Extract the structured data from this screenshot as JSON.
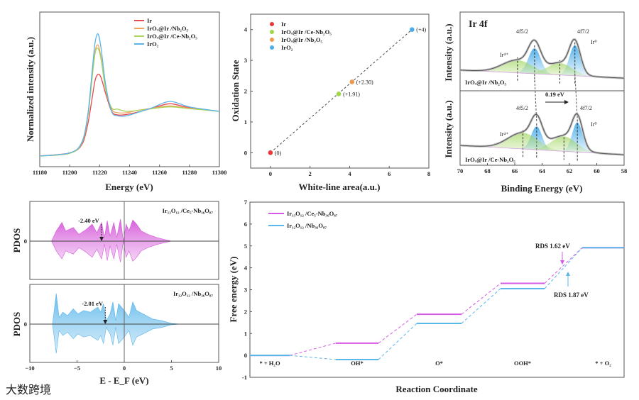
{
  "chart_data": [
    {
      "id": "xanes",
      "type": "line",
      "xlabel": "Energy (eV)",
      "ylabel": "Normalized intensity (a.u.)",
      "xlim": [
        11180,
        11300
      ],
      "xticks": [
        11180,
        11200,
        11220,
        11240,
        11260,
        11280,
        11300
      ],
      "legend_position": "top-right",
      "x": [
        11180,
        11200,
        11208,
        11212,
        11215,
        11217,
        11219,
        11221,
        11224,
        11228,
        11232,
        11238,
        11245,
        11255,
        11267,
        11280,
        11300
      ],
      "series": [
        {
          "name": "Ir",
          "color": "#e8484f",
          "values": [
            0,
            0.07,
            0.25,
            0.7,
            1.3,
            1.7,
            1.83,
            1.75,
            1.4,
            1.0,
            0.92,
            0.93,
            0.98,
            1.07,
            1.17,
            1.08,
            1.0
          ]
        },
        {
          "name": "IrOₓ@Ir /Nb₂O₅",
          "color": "#f2a25a",
          "values": [
            0,
            0.07,
            0.3,
            0.9,
            1.8,
            2.35,
            2.48,
            2.2,
            1.5,
            1.05,
            0.97,
            0.97,
            1.02,
            1.07,
            1.12,
            1.07,
            1.0
          ]
        },
        {
          "name": "IrOₓ@Ir /Ce-Nb₂O₅",
          "color": "#a8d45a",
          "values": [
            0,
            0.06,
            0.28,
            0.85,
            1.75,
            2.3,
            2.41,
            2.15,
            1.5,
            1.08,
            1.05,
            1.0,
            1.02,
            1.06,
            1.1,
            1.06,
            1.0
          ]
        },
        {
          "name": "IrO₂",
          "color": "#5ab4ea",
          "values": [
            0,
            0.07,
            0.3,
            0.9,
            1.9,
            2.55,
            2.73,
            2.4,
            1.6,
            1.0,
            0.9,
            0.9,
            0.97,
            1.08,
            1.22,
            1.1,
            1.0
          ]
        }
      ]
    },
    {
      "id": "oxidation",
      "type": "scatter",
      "xlabel": "White-line area(a.u.)",
      "ylabel": "Oxidation State",
      "xlim": [
        -1,
        8
      ],
      "ylim": [
        -0.5,
        4.5
      ],
      "xticks": [
        0,
        2,
        4,
        6,
        8
      ],
      "yticks": [
        0,
        1,
        2,
        3,
        4
      ],
      "legend_position": "top-left",
      "points": [
        {
          "name": "Ir",
          "x": 0,
          "y": 0,
          "label": "(0)",
          "color": "#e83a3a"
        },
        {
          "name": "IrOₓ@Ir /Ce-Nb₂O₅",
          "x": 3.45,
          "y": 1.91,
          "label": "(+1.91)",
          "color": "#9fd64a"
        },
        {
          "name": "IrOₓ@Ir /Nb₂O₅",
          "x": 4.12,
          "y": 2.3,
          "label": "(+2.30)",
          "color": "#ee9a50"
        },
        {
          "name": "IrO₂",
          "x": 7.15,
          "y": 4,
          "label": "(+4)",
          "color": "#4aaeea"
        }
      ],
      "fit_line": {
        "x": [
          0,
          7.15
        ],
        "y": [
          0,
          4
        ]
      }
    },
    {
      "id": "xps",
      "type": "area",
      "title": "Ir 4f",
      "xlabel": "Binding Energy (eV)",
      "ylabel": "Intensity (a.u.)",
      "xlim": [
        70,
        58
      ],
      "xticks": [
        70,
        68,
        66,
        64,
        62,
        60,
        58
      ],
      "shift_label": "0.19 eV",
      "peak_labels": {
        "f52": "4f5/2",
        "f72": "4f7/2",
        "ir0": "Ir⁰",
        "ir4": "Ir⁴⁺"
      },
      "panels": [
        {
          "sample": "IrOₓ@Ir /Nb₂O₅",
          "background": [
            0.22,
            0.03
          ],
          "components": [
            {
              "species": "Ir0",
              "center": 64.55,
              "height": 0.6,
              "sigma": 0.45
            },
            {
              "species": "Ir0",
              "center": 61.6,
              "height": 0.72,
              "sigma": 0.4
            },
            {
              "species": "Ir4+",
              "center": 65.8,
              "height": 0.3,
              "sigma": 1.1
            },
            {
              "species": "Ir4+",
              "center": 62.7,
              "height": 0.28,
              "sigma": 0.9
            }
          ]
        },
        {
          "sample": "IrOₓ@Ir /Ce-Nb₂O₅",
          "background": [
            0.25,
            0.03
          ],
          "components": [
            {
              "species": "Ir0",
              "center": 64.4,
              "height": 0.55,
              "sigma": 0.4
            },
            {
              "species": "Ir0",
              "center": 61.42,
              "height": 0.7,
              "sigma": 0.38
            },
            {
              "species": "Ir4+",
              "center": 65.4,
              "height": 0.38,
              "sigma": 1.1
            },
            {
              "species": "Ir4+",
              "center": 62.4,
              "height": 0.35,
              "sigma": 0.9
            }
          ]
        }
      ]
    },
    {
      "id": "pdos",
      "type": "area",
      "xlabel": "E - E_F (eV)",
      "ylabel": "PDOS",
      "xlim": [
        -10,
        10
      ],
      "xticks": [
        -10,
        -5,
        0,
        5,
        10
      ],
      "zero_label": "0",
      "panels": [
        {
          "name": "Ir₁₃O₁₂ /Ce₅-Nb₃₆O₈₇",
          "color": "#d45ad8",
          "d_band_center": -2.4,
          "d_band_label": "-2.40 eV",
          "points": [
            [
              -7.7,
              0
            ],
            [
              -7.2,
              0.3
            ],
            [
              -6.6,
              0.55
            ],
            [
              -6.2,
              0.3
            ],
            [
              -5.4,
              0.4
            ],
            [
              -4.8,
              0.2
            ],
            [
              -4,
              0.35
            ],
            [
              -3.4,
              0.5
            ],
            [
              -2.9,
              0.25
            ],
            [
              -2.4,
              0.55
            ],
            [
              -2.1,
              0.1
            ],
            [
              -1.8,
              0.6
            ],
            [
              -1.5,
              0.15
            ],
            [
              -1.1,
              0.55
            ],
            [
              -0.8,
              0.1
            ],
            [
              -0.4,
              0.65
            ],
            [
              -0.1,
              0
            ],
            [
              0.2,
              0.5
            ],
            [
              0.5,
              0.3
            ],
            [
              0.9,
              0.62
            ],
            [
              1.3,
              0.5
            ],
            [
              1.8,
              0.3
            ],
            [
              2.5,
              0.2
            ],
            [
              3.5,
              0.1
            ],
            [
              5,
              0
            ],
            [
              10,
              0
            ]
          ]
        },
        {
          "name": "Ir₁₂O₁₂ /Nb₃₆O₈₇",
          "color": "#5ab4ea",
          "d_band_center": -2.01,
          "d_band_label": "-2.01 eV",
          "points": [
            [
              -7.6,
              0
            ],
            [
              -7.2,
              0.9
            ],
            [
              -6.9,
              0.2
            ],
            [
              -6.5,
              0.35
            ],
            [
              -6,
              0.25
            ],
            [
              -5.4,
              0.45
            ],
            [
              -4.9,
              0.3
            ],
            [
              -4.3,
              0.4
            ],
            [
              -3.6,
              0.35
            ],
            [
              -2.8,
              0.5
            ],
            [
              -2.5,
              0.35
            ],
            [
              -2.2,
              0.6
            ],
            [
              -1.9,
              0.1
            ],
            [
              -1.5,
              0.3
            ],
            [
              -1.2,
              0.65
            ],
            [
              -0.9,
              0.1
            ],
            [
              -0.6,
              0.6
            ],
            [
              -0.3,
              0.5
            ],
            [
              0,
              0.4
            ],
            [
              0.5,
              0.2
            ],
            [
              0.9,
              0.65
            ],
            [
              1.3,
              0.4
            ],
            [
              2,
              0.3
            ],
            [
              3,
              0.15
            ],
            [
              4,
              0.1
            ],
            [
              5,
              0.02
            ],
            [
              6,
              0
            ],
            [
              10,
              0
            ]
          ]
        }
      ]
    },
    {
      "id": "free_energy",
      "type": "line",
      "xlabel": "Reaction Coordinate",
      "ylabel": "Free energy (eV)",
      "ylim": [
        -1,
        7
      ],
      "yticks": [
        -1,
        0,
        1,
        2,
        3,
        4,
        5,
        6,
        7
      ],
      "categories": [
        "* + H₂O",
        "OH*",
        "O*",
        "OOH*",
        "* + O₂"
      ],
      "legend_position": "top-left",
      "series": [
        {
          "name": "Ir₁₃O₁₂ /Ce₅-Nb₃₆O₈₇",
          "color": "#d45ae6",
          "values": [
            0,
            0.56,
            1.88,
            3.29,
            4.92
          ],
          "rds_label": "RDS 1.62 eV"
        },
        {
          "name": "Ir₁₂O₁₂ /Nb₃₆O₈₇",
          "color": "#5ab8ea",
          "values": [
            0,
            -0.19,
            1.46,
            3.05,
            4.92
          ],
          "rds_label": "RDS 1.87 eV"
        }
      ]
    }
  ],
  "watermark": "大数跨境"
}
